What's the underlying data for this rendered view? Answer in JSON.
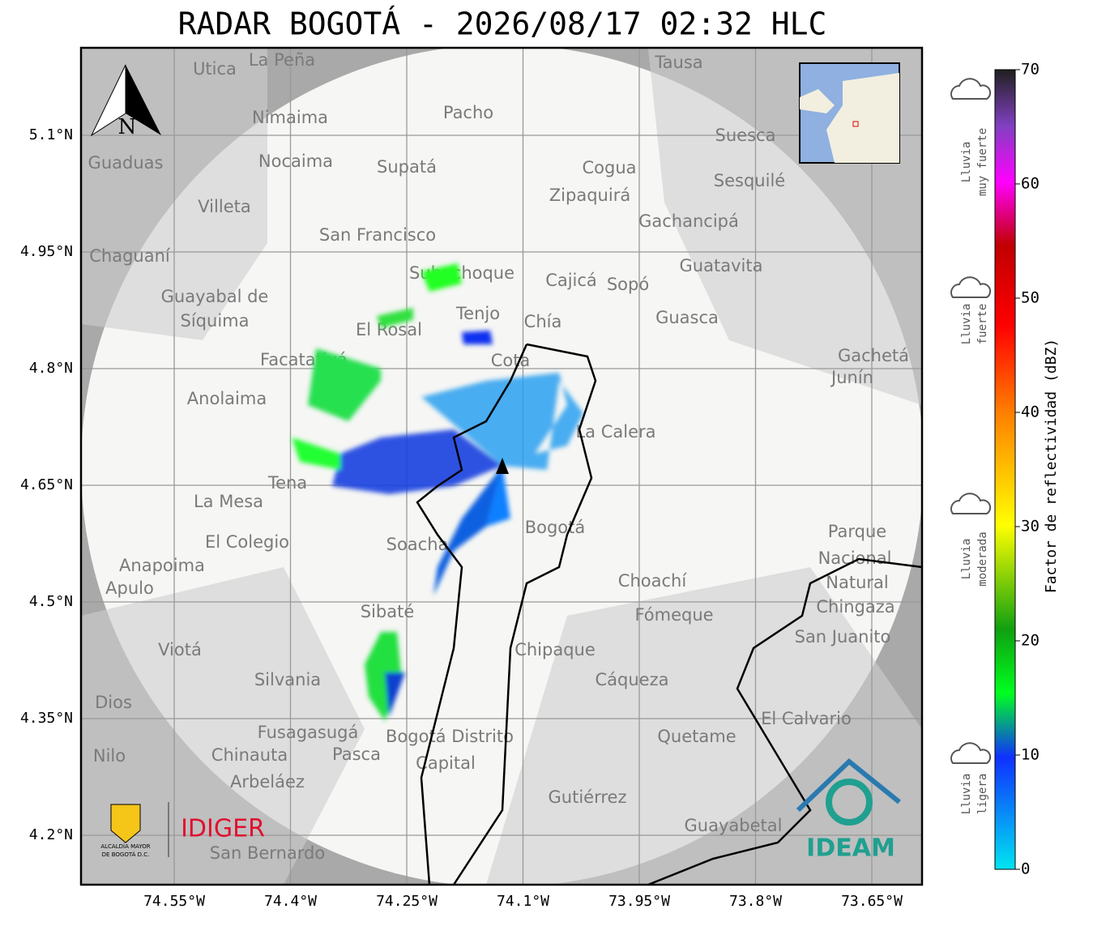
{
  "title": "RADAR BOGOTÁ - 2026/08/17 02:32 HLC",
  "map": {
    "lat_ticks": [
      "5.1°N",
      "4.95°N",
      "4.8°N",
      "4.65°N",
      "4.5°N",
      "4.35°N",
      "4.2°N"
    ],
    "lon_ticks": [
      "74.55°W",
      "74.4°W",
      "74.25°W",
      "74.1°W",
      "73.95°W",
      "73.8°W",
      "73.65°W"
    ],
    "north": "N",
    "places": [
      "La Peña",
      "Utica",
      "Tausa",
      "Pacho",
      "Nimaima",
      "Guaduas",
      "Nocaima",
      "Supatá",
      "Suesca",
      "Cogua",
      "Sesquilé",
      "Zipaquirá",
      "Villeta",
      "Gachancipá",
      "San Francisco",
      "Chaguaní",
      "Guatavita",
      "Subachoque",
      "Cajicá",
      "Sopó",
      "Guayabal de",
      "Síquima",
      "Tenjo",
      "Guasca",
      "El Rosal",
      "Chía",
      "Facatativá",
      "Cota",
      "Gachetá",
      "Junín",
      "Anolaima",
      "La Calera",
      "Tena",
      "La Mesa",
      "Bogotá",
      "El Colegio",
      "Soacha",
      "Parque",
      "Nacional",
      "Natural",
      "Chingaza",
      "Anapoima",
      "Apulo",
      "Choachí",
      "Fómeque",
      "Sibaté",
      "San Juanito",
      "Viotá",
      "Chipaque",
      "Silvania",
      "Cáqueza",
      "Dios",
      "El Calvario",
      "Fusagasugá",
      "Quetame",
      "Nilo",
      "Chinauta",
      "Pasca",
      "Bogotá Distrito",
      "Capital",
      "Arbeláez",
      "Gutiérrez",
      "Guayabetal",
      "San Bernardo"
    ]
  },
  "colorbar": {
    "label": "Factor de reflectividad (dBZ)",
    "ticks": [
      0,
      10,
      20,
      30,
      40,
      50,
      60,
      70
    ],
    "categories": [
      [
        "Lluvia",
        "muy fuerte"
      ],
      [
        "Lluvia",
        "fuerte"
      ],
      [
        "Lluvia",
        "moderada"
      ],
      [
        "Lluvia",
        "ligera"
      ]
    ]
  },
  "logos": {
    "alcaldia": [
      "ALCALDÍA MAYOR",
      "DE BOGOTÁ D.C."
    ],
    "idiger": "IDIGER",
    "ideam": "IDEAM"
  }
}
